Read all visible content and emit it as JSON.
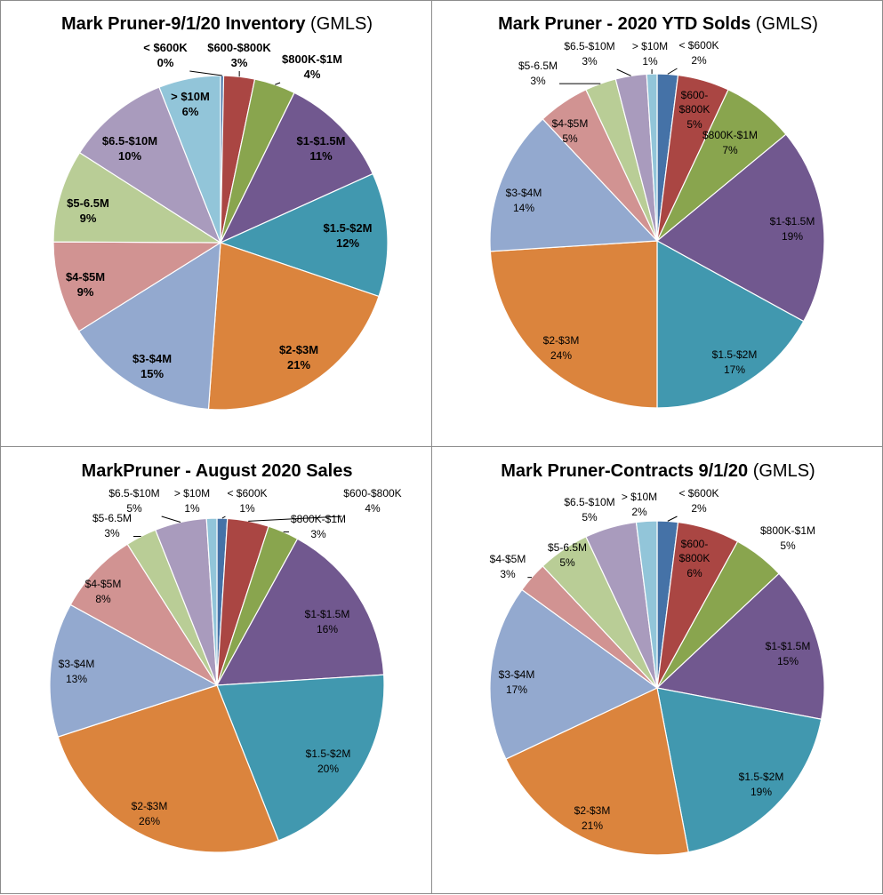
{
  "chart_data": [
    {
      "type": "pie",
      "title": "Mark Pruner-9/1/20 Inventory",
      "title_suffix": " (GMLS)",
      "labels": [
        "< $600K",
        "$600-$800K",
        "$800K-$1M",
        "$1-$1.5M",
        "$1.5-$2M",
        "$2-$3M",
        "$3-$4M",
        "$4-$5M",
        "$5-6.5M",
        "$6.5-$10M",
        "> $10M"
      ],
      "values": [
        0,
        3,
        4,
        11,
        12,
        21,
        15,
        9,
        9,
        10,
        6
      ],
      "value_labels": [
        "0%",
        "3%",
        "4%",
        "11%",
        "12%",
        "21%",
        "15%",
        "9%",
        "9%",
        "10%",
        "6%"
      ],
      "colors": [
        "#4572A7",
        "#AA4643",
        "#89A54E",
        "#71588F",
        "#4198AF",
        "#DB843D",
        "#93A9CF",
        "#D19392",
        "#B9CD96",
        "#A99BBD",
        "#92C5D9"
      ],
      "bold_labels": true
    },
    {
      "type": "pie",
      "title": "Mark Pruner - 2020 YTD Solds",
      "title_suffix": " (GMLS)",
      "labels": [
        "< $600K",
        "$600-\n$800K",
        "$800K-$1M",
        "$1-$1.5M",
        "$1.5-$2M",
        "$2-$3M",
        "$3-$4M",
        "$4-$5M",
        "$5-6.5M",
        "$6.5-$10M",
        "> $10M"
      ],
      "values": [
        2,
        5,
        7,
        19,
        17,
        24,
        14,
        5,
        3,
        3,
        1
      ],
      "value_labels": [
        "2%",
        "5%",
        "7%",
        "19%",
        "17%",
        "24%",
        "14%",
        "5%",
        "3%",
        "3%",
        "1%"
      ],
      "colors": [
        "#4572A7",
        "#AA4643",
        "#89A54E",
        "#71588F",
        "#4198AF",
        "#DB843D",
        "#93A9CF",
        "#D19392",
        "#B9CD96",
        "#A99BBD",
        "#92C5D9"
      ],
      "bold_labels": false
    },
    {
      "type": "pie",
      "title": "MarkPruner - August 2020 Sales",
      "title_suffix": "",
      "labels": [
        "< $600K",
        "$600-$800K",
        "$800K-$1M",
        "$1-$1.5M",
        "$1.5-$2M",
        "$2-$3M",
        "$3-$4M",
        "$4-$5M",
        "$5-6.5M",
        "$6.5-$10M",
        "> $10M"
      ],
      "values": [
        1,
        4,
        3,
        16,
        20,
        26,
        13,
        8,
        3,
        5,
        1
      ],
      "value_labels": [
        "1%",
        "4%",
        "3%",
        "16%",
        "20%",
        "26%",
        "13%",
        "8%",
        "3%",
        "5%",
        "1%"
      ],
      "colors": [
        "#4572A7",
        "#AA4643",
        "#89A54E",
        "#71588F",
        "#4198AF",
        "#DB843D",
        "#93A9CF",
        "#D19392",
        "#B9CD96",
        "#A99BBD",
        "#92C5D9"
      ],
      "bold_labels": false
    },
    {
      "type": "pie",
      "title": "Mark Pruner-Contracts 9/1/20",
      "title_suffix": " (GMLS)",
      "labels": [
        "< $600K",
        "$600-\n$800K",
        "$800K-$1M",
        "$1-$1.5M",
        "$1.5-$2M",
        "$2-$3M",
        "$3-$4M",
        "$4-$5M",
        "$5-6.5M",
        "$6.5-$10M",
        "> $10M"
      ],
      "values": [
        2,
        6,
        5,
        15,
        19,
        21,
        17,
        3,
        5,
        5,
        2
      ],
      "value_labels": [
        "2%",
        "6%",
        "5%",
        "15%",
        "19%",
        "21%",
        "17%",
        "3%",
        "5%",
        "5%",
        "2%"
      ],
      "colors": [
        "#4572A7",
        "#AA4643",
        "#89A54E",
        "#71588F",
        "#4198AF",
        "#DB843D",
        "#93A9CF",
        "#D19392",
        "#B9CD96",
        "#A99BBD",
        "#92C5D9"
      ],
      "bold_labels": false
    }
  ]
}
